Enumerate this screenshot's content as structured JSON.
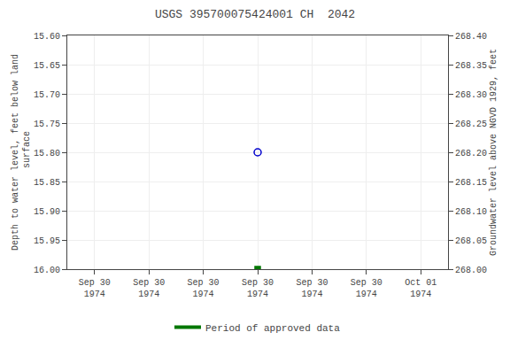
{
  "chart_data": {
    "type": "scatter",
    "title": "USGS 395700075424001 CH  2042",
    "ylabel": "Depth to water level, feet below land\n surface",
    "y2label": "Groundwater level above NGVD 1929, feet",
    "categories": [
      "Sep 30\n1974",
      "Sep 30\n1974",
      "Sep 30\n1974",
      "Sep 30\n1974",
      "Sep 30\n1974",
      "Sep 30\n1974",
      "Oct 01\n1974"
    ],
    "series": [
      {
        "color": "#0000cc",
        "marker": "circle-open",
        "values": [
          null,
          null,
          null,
          15.8,
          null,
          null,
          null
        ]
      },
      {
        "color": "#007700",
        "marker": "square",
        "values": [
          null,
          null,
          null,
          16.0,
          null,
          null,
          null
        ]
      },
      {
        "name": "Period of approved data",
        "color": "#007700",
        "type": "line",
        "values": [
          null,
          null,
          null,
          null,
          null,
          null,
          null
        ]
      }
    ],
    "ylim": [
      16.0,
      15.6
    ],
    "yticks": [
      {
        "value": 15.6,
        "label": "15.60"
      },
      15.65,
      {
        "value": 15.7,
        "label": "15.70"
      },
      15.75,
      {
        "value": 15.8,
        "label": "15.80"
      },
      15.85,
      {
        "value": 15.9,
        "label": "15.90"
      },
      15.95,
      {
        "value": 16.0,
        "label": "16.00"
      }
    ],
    "y2lim": [
      268.0,
      268.4
    ],
    "y2ticks": [
      {
        "value": 268.0,
        "label": "268.00"
      },
      268.05,
      {
        "value": 268.1,
        "label": "268.10"
      },
      268.15,
      {
        "value": 268.2,
        "label": "268.20"
      },
      268.25,
      {
        "value": 268.3,
        "label": "268.30"
      },
      268.35,
      {
        "value": 268.4,
        "label": "268.40"
      }
    ],
    "grid": true,
    "legend": "bottom"
  }
}
